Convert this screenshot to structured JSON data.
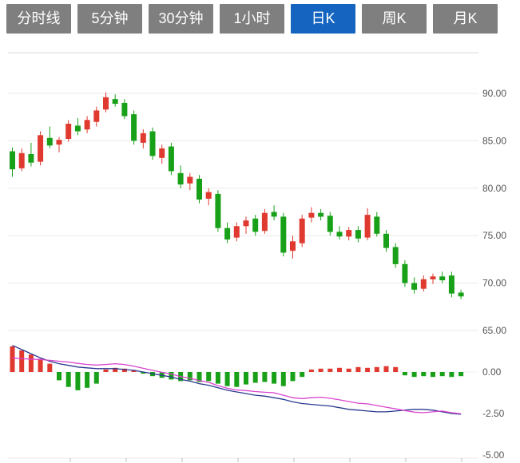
{
  "tabs": [
    {
      "id": "time-line",
      "label": "分时线",
      "active": false
    },
    {
      "id": "5min",
      "label": "5分钟",
      "active": false
    },
    {
      "id": "30min",
      "label": "30分钟",
      "active": false
    },
    {
      "id": "1hour",
      "label": "1小时",
      "active": false
    },
    {
      "id": "daily-k",
      "label": "日K",
      "active": true
    },
    {
      "id": "weekly-k",
      "label": "周K",
      "active": false
    },
    {
      "id": "monthly-k",
      "label": "月K",
      "active": false
    }
  ],
  "colors": {
    "up": "#e0392f",
    "down": "#18a118",
    "dif_line": "#d944cf",
    "dea_line": "#2b3990",
    "tab_bg": "#7f7f7f",
    "tab_active_bg": "#1565c0",
    "grid": "#e9e9e9",
    "top_border": "#d9d9d9",
    "axis_line": "#bbbbbb",
    "axis_text": "#555555"
  },
  "chart_data": {
    "type": "candlestick+macd",
    "title": "",
    "price_axis_ticks": [
      "90.00",
      "85.00",
      "80.00",
      "75.00",
      "70.00",
      "65.00"
    ],
    "price_axis_values": [
      90,
      85,
      80,
      75,
      70,
      65
    ],
    "price_ylim": [
      64,
      94.3
    ],
    "macd_axis_ticks": [
      "0.00",
      "-2.50",
      "-5.00"
    ],
    "macd_axis_values": [
      0,
      -2.5,
      -5
    ],
    "macd_ylim": [
      -5.4,
      1.6
    ],
    "grid": "horizontal-only",
    "legend": "none",
    "candles": [
      [
        83.9,
        84.3,
        81.2,
        82.0
      ],
      [
        82.1,
        84.2,
        81.8,
        83.7
      ],
      [
        83.6,
        84.8,
        82.3,
        82.7
      ],
      [
        82.8,
        86.0,
        82.4,
        85.6
      ],
      [
        85.3,
        86.5,
        84.2,
        84.5
      ],
      [
        84.6,
        85.4,
        83.8,
        85.1
      ],
      [
        85.2,
        87.2,
        84.9,
        86.8
      ],
      [
        86.6,
        87.4,
        85.6,
        86.0
      ],
      [
        86.2,
        87.6,
        85.8,
        87.2
      ],
      [
        87.0,
        88.6,
        86.5,
        88.2
      ],
      [
        88.3,
        90.1,
        88.0,
        89.6
      ],
      [
        89.4,
        89.9,
        88.6,
        88.9
      ],
      [
        89.0,
        89.4,
        87.3,
        87.6
      ],
      [
        87.8,
        88.2,
        84.6,
        85.0
      ],
      [
        84.8,
        86.2,
        84.2,
        85.8
      ],
      [
        86.0,
        86.4,
        83.0,
        83.4
      ],
      [
        83.2,
        84.6,
        82.6,
        84.2
      ],
      [
        84.4,
        84.8,
        81.4,
        81.8
      ],
      [
        81.6,
        82.4,
        80.0,
        80.4
      ],
      [
        80.5,
        81.6,
        79.8,
        81.2
      ],
      [
        81.0,
        81.4,
        78.4,
        78.8
      ],
      [
        78.9,
        80.0,
        78.2,
        79.6
      ],
      [
        79.4,
        79.8,
        75.4,
        75.8
      ],
      [
        75.8,
        76.4,
        74.2,
        74.6
      ],
      [
        74.8,
        76.4,
        74.4,
        76.0
      ],
      [
        76.0,
        77.0,
        75.2,
        76.6
      ],
      [
        76.8,
        77.2,
        75.0,
        75.4
      ],
      [
        75.5,
        77.8,
        75.2,
        77.4
      ],
      [
        77.5,
        78.2,
        76.6,
        77.0
      ],
      [
        77.0,
        77.4,
        72.8,
        73.2
      ],
      [
        73.4,
        75.0,
        72.6,
        74.4
      ],
      [
        74.2,
        77.2,
        73.8,
        76.8
      ],
      [
        76.9,
        78.0,
        76.4,
        77.4
      ],
      [
        77.4,
        77.8,
        76.6,
        77.0
      ],
      [
        77.1,
        77.5,
        75.0,
        75.4
      ],
      [
        75.4,
        76.0,
        74.6,
        74.9
      ],
      [
        74.9,
        75.9,
        74.5,
        75.6
      ],
      [
        75.6,
        76.0,
        74.3,
        74.7
      ],
      [
        74.8,
        77.9,
        74.5,
        77.2
      ],
      [
        77.0,
        77.5,
        74.9,
        75.2
      ],
      [
        75.2,
        75.6,
        73.3,
        73.7
      ],
      [
        73.8,
        74.2,
        71.6,
        72.0
      ],
      [
        72.0,
        72.4,
        69.6,
        70.0
      ],
      [
        70.0,
        70.6,
        68.9,
        69.3
      ],
      [
        69.4,
        70.8,
        69.1,
        70.4
      ],
      [
        70.4,
        71.0,
        69.9,
        70.7
      ],
      [
        70.7,
        71.2,
        70.0,
        70.3
      ],
      [
        70.8,
        71.2,
        68.5,
        68.9
      ],
      [
        69.0,
        69.3,
        68.3,
        68.6
      ]
    ],
    "candle_format": "[open, high, low, close]",
    "macd": {
      "histogram": [
        1.55,
        1.3,
        1.05,
        0.8,
        0.5,
        -0.5,
        -0.9,
        -1.1,
        -0.95,
        -0.7,
        0.15,
        0.25,
        0.2,
        0.1,
        -0.1,
        -0.25,
        -0.35,
        -0.45,
        -0.55,
        -0.5,
        -0.6,
        -0.55,
        -0.7,
        -0.85,
        -0.9,
        -0.75,
        -0.65,
        -0.6,
        -0.7,
        -0.85,
        -0.55,
        -0.3,
        0.15,
        0.2,
        0.2,
        0.25,
        0.2,
        0.3,
        0.25,
        0.3,
        0.35,
        0.3,
        -0.2,
        -0.3,
        -0.25,
        -0.3,
        -0.25,
        -0.3,
        -0.25
      ],
      "dif": [
        0.85,
        0.8,
        0.78,
        0.75,
        0.7,
        0.65,
        0.6,
        0.52,
        0.45,
        0.42,
        0.45,
        0.5,
        0.45,
        0.35,
        0.22,
        0.1,
        -0.02,
        -0.12,
        -0.28,
        -0.38,
        -0.52,
        -0.62,
        -0.82,
        -0.98,
        -1.08,
        -1.12,
        -1.18,
        -1.22,
        -1.25,
        -1.4,
        -1.55,
        -1.6,
        -1.55,
        -1.52,
        -1.58,
        -1.68,
        -1.78,
        -1.88,
        -1.92,
        -2.02,
        -2.12,
        -2.22,
        -2.32,
        -2.42,
        -2.45,
        -2.4,
        -2.35,
        -2.45,
        -2.52
      ],
      "dea": [
        1.6,
        1.35,
        1.1,
        0.85,
        0.65,
        0.5,
        0.4,
        0.3,
        0.25,
        0.2,
        0.2,
        0.2,
        0.15,
        0.1,
        0.0,
        -0.1,
        -0.2,
        -0.3,
        -0.45,
        -0.55,
        -0.7,
        -0.8,
        -0.95,
        -1.1,
        -1.2,
        -1.3,
        -1.4,
        -1.45,
        -1.55,
        -1.65,
        -1.8,
        -1.9,
        -1.95,
        -2.0,
        -2.05,
        -2.15,
        -2.25,
        -2.3,
        -2.35,
        -2.4,
        -2.4,
        -2.35,
        -2.3,
        -2.25,
        -2.25,
        -2.3,
        -2.4,
        -2.5,
        -2.55
      ]
    }
  }
}
